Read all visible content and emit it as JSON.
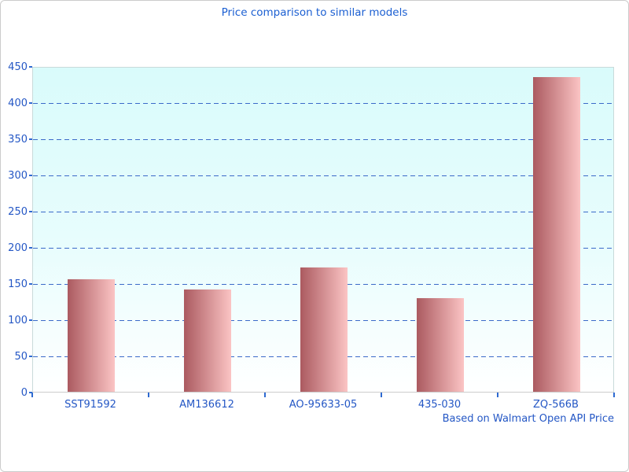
{
  "window": {
    "border_color": "#cccccc",
    "background": "#ffffff"
  },
  "chart_data": {
    "type": "bar",
    "title": "Price comparison to similar models",
    "footnote": "Based on Walmart Open API Price",
    "categories": [
      "SST91592",
      "AM136612",
      "AO-95633-05",
      "435-030",
      "ZQ-566B"
    ],
    "values": [
      155,
      141,
      172,
      129,
      435
    ],
    "xlabel": "",
    "ylabel": "",
    "ylim": [
      0,
      450
    ],
    "yticks": [
      0,
      50,
      100,
      150,
      200,
      250,
      300,
      350,
      400,
      450
    ],
    "grid": "horizontal-dashed",
    "legend": "none",
    "colors": {
      "title_text": "#1b5fd2",
      "axis_text": "#2457c5",
      "gridline": "#3b6ac9",
      "tick": "#2e6ad1",
      "bar_gradient_left": "#ab5a60",
      "bar_gradient_right": "#fbc4c4",
      "plot_bg_top": "#d9fbfb",
      "plot_bg_bottom": "#ffffff",
      "plot_border": "#c9dada",
      "axis_line": "#cccccc"
    }
  }
}
